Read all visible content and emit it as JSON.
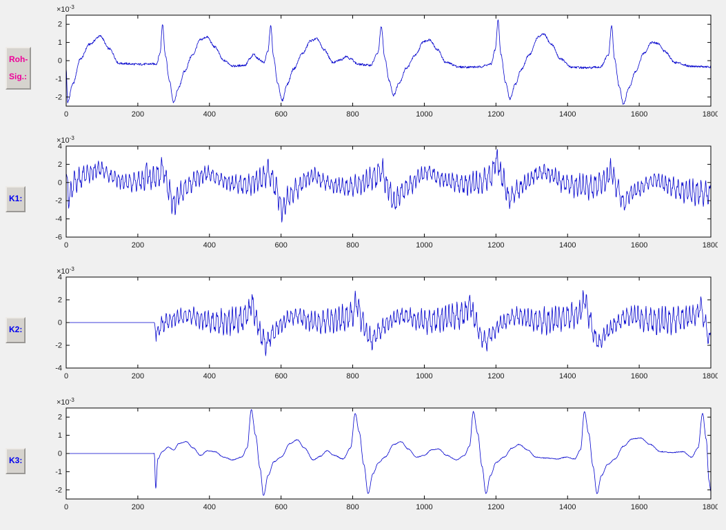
{
  "figure": {
    "background": "#f0f0f0",
    "plot_bg": "#ffffff",
    "axis_color": "#000000",
    "line_color": "#0000cc"
  },
  "chart_data": [
    {
      "type": "line",
      "label": "Roh-\nSig.:",
      "label_color": "#ee0099",
      "exponent_base": "×10",
      "exponent_exp": "-3",
      "unit_scale": "1e-3",
      "xlim": [
        0,
        1800
      ],
      "ylim": [
        -2.5,
        2.5
      ],
      "xticks": [
        0,
        200,
        400,
        600,
        800,
        1000,
        1200,
        1400,
        1600,
        1800
      ],
      "yticks": [
        -2,
        -1,
        0,
        1,
        2
      ],
      "noise_amp": 0.06,
      "osc": null,
      "keypoints": [
        [
          0,
          -0.4
        ],
        [
          4,
          -2.3
        ],
        [
          18,
          -1.3
        ],
        [
          40,
          0.1
        ],
        [
          65,
          0.9
        ],
        [
          95,
          1.35
        ],
        [
          120,
          0.65
        ],
        [
          148,
          -0.15
        ],
        [
          200,
          -0.2
        ],
        [
          252,
          -0.18
        ],
        [
          262,
          0.4
        ],
        [
          269,
          2.0
        ],
        [
          277,
          0.3
        ],
        [
          288,
          -1.1
        ],
        [
          300,
          -2.3
        ],
        [
          314,
          -1.5
        ],
        [
          330,
          -0.6
        ],
        [
          352,
          0.3
        ],
        [
          375,
          1.15
        ],
        [
          393,
          1.3
        ],
        [
          415,
          0.75
        ],
        [
          440,
          0.0
        ],
        [
          468,
          -0.3
        ],
        [
          500,
          -0.25
        ],
        [
          513,
          0.1
        ],
        [
          524,
          0.35
        ],
        [
          536,
          0.1
        ],
        [
          552,
          -0.1
        ],
        [
          563,
          0.5
        ],
        [
          571,
          1.9
        ],
        [
          579,
          0.2
        ],
        [
          590,
          -1.2
        ],
        [
          603,
          -2.2
        ],
        [
          617,
          -1.3
        ],
        [
          635,
          -0.45
        ],
        [
          660,
          0.4
        ],
        [
          683,
          1.1
        ],
        [
          700,
          1.2
        ],
        [
          720,
          0.6
        ],
        [
          745,
          -0.1
        ],
        [
          768,
          0.05
        ],
        [
          781,
          0.25
        ],
        [
          794,
          0.1
        ],
        [
          815,
          -0.2
        ],
        [
          850,
          -0.25
        ],
        [
          870,
          0.4
        ],
        [
          880,
          1.85
        ],
        [
          889,
          0.2
        ],
        [
          902,
          -1.1
        ],
        [
          914,
          -1.9
        ],
        [
          930,
          -1.2
        ],
        [
          950,
          -0.4
        ],
        [
          975,
          0.3
        ],
        [
          998,
          1.05
        ],
        [
          1015,
          1.15
        ],
        [
          1037,
          0.6
        ],
        [
          1060,
          -0.1
        ],
        [
          1100,
          -0.35
        ],
        [
          1150,
          -0.35
        ],
        [
          1186,
          -0.2
        ],
        [
          1198,
          0.6
        ],
        [
          1206,
          2.2
        ],
        [
          1214,
          0.3
        ],
        [
          1227,
          -1.2
        ],
        [
          1239,
          -2.1
        ],
        [
          1254,
          -1.3
        ],
        [
          1270,
          -0.5
        ],
        [
          1294,
          0.35
        ],
        [
          1318,
          1.3
        ],
        [
          1333,
          1.45
        ],
        [
          1355,
          0.9
        ],
        [
          1380,
          0.1
        ],
        [
          1410,
          -0.35
        ],
        [
          1455,
          -0.4
        ],
        [
          1492,
          -0.35
        ],
        [
          1514,
          0.3
        ],
        [
          1523,
          1.9
        ],
        [
          1531,
          0.1
        ],
        [
          1544,
          -1.4
        ],
        [
          1556,
          -2.4
        ],
        [
          1571,
          -1.5
        ],
        [
          1590,
          -0.6
        ],
        [
          1613,
          0.4
        ],
        [
          1634,
          1.0
        ],
        [
          1652,
          0.95
        ],
        [
          1672,
          0.5
        ],
        [
          1700,
          -0.1
        ],
        [
          1745,
          -0.3
        ],
        [
          1800,
          -0.35
        ]
      ]
    },
    {
      "type": "line",
      "label": "K1:",
      "label_color": "#0000ee",
      "exponent_base": "×10",
      "exponent_exp": "-3",
      "unit_scale": "1e-3",
      "xlim": [
        0,
        1800
      ],
      "ylim": [
        -6,
        4
      ],
      "xticks": [
        0,
        200,
        400,
        600,
        800,
        1000,
        1200,
        1400,
        1600,
        1800
      ],
      "yticks": [
        -6,
        -4,
        -2,
        0,
        2,
        4
      ],
      "noise_amp": 0.15,
      "osc": {
        "amp": 1.5,
        "period": 11,
        "start": 0
      },
      "keypoints": [
        [
          0,
          0.2
        ],
        [
          8,
          -1.6
        ],
        [
          25,
          0.2
        ],
        [
          60,
          1.0
        ],
        [
          95,
          1.5
        ],
        [
          130,
          0.6
        ],
        [
          165,
          0.0
        ],
        [
          218,
          0.2
        ],
        [
          225,
          1.4
        ],
        [
          233,
          0.3
        ],
        [
          258,
          0.8
        ],
        [
          270,
          1.5
        ],
        [
          285,
          -0.6
        ],
        [
          300,
          -2.4
        ],
        [
          318,
          -1.2
        ],
        [
          340,
          -0.4
        ],
        [
          370,
          0.6
        ],
        [
          395,
          1.0
        ],
        [
          425,
          0.4
        ],
        [
          460,
          -0.1
        ],
        [
          500,
          -0.3
        ],
        [
          540,
          0.2
        ],
        [
          565,
          1.1
        ],
        [
          585,
          -0.5
        ],
        [
          603,
          -3.0
        ],
        [
          622,
          -1.6
        ],
        [
          645,
          -0.6
        ],
        [
          672,
          0.4
        ],
        [
          692,
          0.8
        ],
        [
          720,
          0.1
        ],
        [
          748,
          -0.3
        ],
        [
          790,
          -0.5
        ],
        [
          820,
          -0.2
        ],
        [
          862,
          0.6
        ],
        [
          880,
          1.3
        ],
        [
          897,
          -0.4
        ],
        [
          916,
          -2.2
        ],
        [
          938,
          -1.0
        ],
        [
          962,
          -0.2
        ],
        [
          990,
          0.8
        ],
        [
          1012,
          1.2
        ],
        [
          1040,
          0.5
        ],
        [
          1070,
          0.1
        ],
        [
          1110,
          -0.2
        ],
        [
          1150,
          -0.1
        ],
        [
          1185,
          0.6
        ],
        [
          1202,
          2.5
        ],
        [
          1218,
          0.4
        ],
        [
          1237,
          -1.8
        ],
        [
          1258,
          -0.9
        ],
        [
          1285,
          0.0
        ],
        [
          1315,
          0.9
        ],
        [
          1335,
          1.2
        ],
        [
          1360,
          0.7
        ],
        [
          1390,
          -0.1
        ],
        [
          1430,
          -0.4
        ],
        [
          1470,
          -0.5
        ],
        [
          1505,
          0.2
        ],
        [
          1521,
          1.2
        ],
        [
          1540,
          -0.6
        ],
        [
          1556,
          -2.3
        ],
        [
          1576,
          -1.2
        ],
        [
          1600,
          -0.7
        ],
        [
          1625,
          0.0
        ],
        [
          1645,
          0.3
        ],
        [
          1675,
          -0.2
        ],
        [
          1710,
          -0.8
        ],
        [
          1755,
          -1.1
        ],
        [
          1800,
          -1.2
        ]
      ]
    },
    {
      "type": "line",
      "label": "K2:",
      "label_color": "#0000ee",
      "exponent_base": "×10",
      "exponent_exp": "-3",
      "unit_scale": "1e-3",
      "xlim": [
        0,
        1800
      ],
      "ylim": [
        -4,
        4
      ],
      "xticks": [
        0,
        200,
        400,
        600,
        800,
        1000,
        1200,
        1400,
        1600,
        1800
      ],
      "yticks": [
        -4,
        -2,
        0,
        2,
        4
      ],
      "noise_amp": 0.12,
      "active_from": 251,
      "osc": {
        "amp": 1.3,
        "period": 11,
        "start": 251
      },
      "keypoints": [
        [
          0,
          0
        ],
        [
          246,
          0
        ],
        [
          252,
          -1.4
        ],
        [
          260,
          -0.4
        ],
        [
          280,
          0.1
        ],
        [
          320,
          0.5
        ],
        [
          350,
          0.6
        ],
        [
          385,
          0.2
        ],
        [
          420,
          0.0
        ],
        [
          455,
          0.1
        ],
        [
          490,
          0.3
        ],
        [
          508,
          0.8
        ],
        [
          518,
          1.8
        ],
        [
          530,
          0.3
        ],
        [
          545,
          -1.2
        ],
        [
          558,
          -1.9
        ],
        [
          575,
          -1.0
        ],
        [
          600,
          -0.2
        ],
        [
          625,
          0.5
        ],
        [
          648,
          0.6
        ],
        [
          680,
          0.1
        ],
        [
          710,
          0.0
        ],
        [
          740,
          0.2
        ],
        [
          770,
          0.3
        ],
        [
          795,
          0.6
        ],
        [
          812,
          1.7
        ],
        [
          826,
          0.2
        ],
        [
          840,
          -1.0
        ],
        [
          853,
          -1.6
        ],
        [
          872,
          -0.8
        ],
        [
          900,
          0.0
        ],
        [
          925,
          0.5
        ],
        [
          948,
          0.6
        ],
        [
          980,
          0.2
        ],
        [
          1010,
          0.1
        ],
        [
          1045,
          0.3
        ],
        [
          1080,
          0.5
        ],
        [
          1110,
          0.7
        ],
        [
          1128,
          1.6
        ],
        [
          1142,
          0.2
        ],
        [
          1158,
          -1.2
        ],
        [
          1170,
          -1.7
        ],
        [
          1190,
          -0.9
        ],
        [
          1215,
          -0.1
        ],
        [
          1245,
          0.5
        ],
        [
          1268,
          0.6
        ],
        [
          1300,
          0.2
        ],
        [
          1335,
          0.1
        ],
        [
          1370,
          0.3
        ],
        [
          1405,
          0.5
        ],
        [
          1432,
          0.8
        ],
        [
          1448,
          2.0
        ],
        [
          1462,
          0.3
        ],
        [
          1476,
          -1.3
        ],
        [
          1488,
          -1.8
        ],
        [
          1508,
          -0.9
        ],
        [
          1535,
          -0.1
        ],
        [
          1562,
          0.5
        ],
        [
          1588,
          0.6
        ],
        [
          1620,
          0.2
        ],
        [
          1655,
          0.1
        ],
        [
          1690,
          0.2
        ],
        [
          1725,
          0.4
        ],
        [
          1755,
          0.6
        ],
        [
          1772,
          1.4
        ],
        [
          1784,
          0.0
        ],
        [
          1793,
          -1.2
        ],
        [
          1800,
          -1.5
        ]
      ]
    },
    {
      "type": "line",
      "label": "K3:",
      "label_color": "#0000ee",
      "exponent_base": "×10",
      "exponent_exp": "-3",
      "unit_scale": "1e-3",
      "xlim": [
        0,
        1800
      ],
      "ylim": [
        -2.5,
        2.5
      ],
      "xticks": [
        0,
        200,
        400,
        600,
        800,
        1000,
        1200,
        1400,
        1600,
        1800
      ],
      "yticks": [
        -2,
        -1,
        0,
        1,
        2
      ],
      "noise_amp": 0.02,
      "active_from": 244,
      "osc": null,
      "keypoints": [
        [
          0,
          0
        ],
        [
          246,
          0
        ],
        [
          250,
          -1.9
        ],
        [
          256,
          -0.3
        ],
        [
          268,
          0.1
        ],
        [
          285,
          0.35
        ],
        [
          300,
          0.2
        ],
        [
          315,
          0.55
        ],
        [
          335,
          0.65
        ],
        [
          355,
          0.3
        ],
        [
          375,
          -0.1
        ],
        [
          395,
          0.15
        ],
        [
          415,
          0.1
        ],
        [
          440,
          -0.2
        ],
        [
          465,
          -0.35
        ],
        [
          490,
          -0.2
        ],
        [
          505,
          0.3
        ],
        [
          517,
          2.4
        ],
        [
          529,
          1.0
        ],
        [
          541,
          -0.8
        ],
        [
          551,
          -2.3
        ],
        [
          564,
          -1.2
        ],
        [
          580,
          -0.45
        ],
        [
          600,
          -0.2
        ],
        [
          625,
          0.55
        ],
        [
          645,
          0.75
        ],
        [
          665,
          0.3
        ],
        [
          690,
          -0.35
        ],
        [
          710,
          -0.15
        ],
        [
          728,
          0.15
        ],
        [
          748,
          -0.1
        ],
        [
          773,
          -0.3
        ],
        [
          794,
          0.3
        ],
        [
          807,
          2.2
        ],
        [
          818,
          1.2
        ],
        [
          831,
          -0.6
        ],
        [
          843,
          -2.2
        ],
        [
          857,
          -1.1
        ],
        [
          872,
          -0.5
        ],
        [
          890,
          -0.2
        ],
        [
          915,
          0.5
        ],
        [
          935,
          0.65
        ],
        [
          955,
          0.25
        ],
        [
          978,
          -0.2
        ],
        [
          1000,
          -0.1
        ],
        [
          1020,
          0.2
        ],
        [
          1040,
          0.25
        ],
        [
          1062,
          -0.1
        ],
        [
          1090,
          -0.35
        ],
        [
          1112,
          -0.1
        ],
        [
          1126,
          0.4
        ],
        [
          1137,
          2.3
        ],
        [
          1149,
          1.1
        ],
        [
          1161,
          -0.7
        ],
        [
          1172,
          -2.2
        ],
        [
          1185,
          -1.2
        ],
        [
          1200,
          -0.5
        ],
        [
          1222,
          -0.2
        ],
        [
          1245,
          0.3
        ],
        [
          1265,
          0.5
        ],
        [
          1288,
          0.2
        ],
        [
          1312,
          -0.2
        ],
        [
          1340,
          -0.25
        ],
        [
          1370,
          -0.3
        ],
        [
          1396,
          -0.2
        ],
        [
          1420,
          -0.3
        ],
        [
          1436,
          0.2
        ],
        [
          1447,
          2.3
        ],
        [
          1459,
          1.1
        ],
        [
          1471,
          -0.7
        ],
        [
          1482,
          -2.2
        ],
        [
          1495,
          -1.2
        ],
        [
          1512,
          -0.6
        ],
        [
          1532,
          -0.3
        ],
        [
          1556,
          0.4
        ],
        [
          1580,
          0.8
        ],
        [
          1604,
          0.85
        ],
        [
          1630,
          0.5
        ],
        [
          1660,
          0.1
        ],
        [
          1692,
          0.05
        ],
        [
          1722,
          0.1
        ],
        [
          1746,
          -0.2
        ],
        [
          1764,
          0.3
        ],
        [
          1777,
          2.2
        ],
        [
          1787,
          0.8
        ],
        [
          1795,
          -1.5
        ],
        [
          1800,
          -2.1
        ]
      ]
    }
  ]
}
